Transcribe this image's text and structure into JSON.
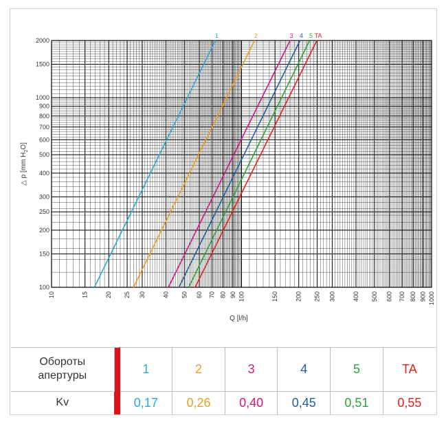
{
  "chart_data": {
    "type": "line",
    "xlabel": "Q [l/h]",
    "ylabel": "△ p [mm H",
    "ylabel_sub": "2",
    "ylabel_end": "O]",
    "xscale": "log",
    "yscale": "log",
    "xlim": [
      10,
      1000
    ],
    "ylim": [
      100,
      2000
    ],
    "grid": true,
    "x_ticks": [
      "10",
      "15",
      "20",
      "25",
      "30",
      "40",
      "50",
      "60",
      "70",
      "80",
      "90",
      "100",
      "150",
      "200",
      "250",
      "300",
      "400",
      "500",
      "600",
      "700",
      "800",
      "900",
      "1000"
    ],
    "y_ticks": [
      "100",
      "150",
      "200",
      "250",
      "300",
      "400",
      "500",
      "600",
      "700",
      "800",
      "900",
      "1000",
      "1500",
      "2000"
    ],
    "series": [
      {
        "name": "1",
        "color": "#29a8e0",
        "points": [
          [
            16.8,
            100
          ],
          [
            72.8,
            2000
          ]
        ]
      },
      {
        "name": "2",
        "color": "#f39a1e",
        "points": [
          [
            27.0,
            100
          ],
          [
            117,
            2000
          ]
        ]
      },
      {
        "name": "3",
        "color": "#d4147d",
        "points": [
          [
            41.2,
            100
          ],
          [
            180,
            2000
          ]
        ]
      },
      {
        "name": "4",
        "color": "#1f5ea8",
        "points": [
          [
            46.8,
            100
          ],
          [
            203,
            2000
          ]
        ]
      },
      {
        "name": "5",
        "color": "#2aa538",
        "points": [
          [
            52.7,
            100
          ],
          [
            228,
            2000
          ]
        ]
      },
      {
        "name": "TA",
        "color": "#e2231a",
        "points": [
          [
            57.0,
            100
          ],
          [
            249,
            2000
          ]
        ]
      }
    ]
  },
  "table": {
    "row1_header": [
      "Обороты",
      "апертуры"
    ],
    "row2_header": "Kv",
    "columns": [
      {
        "opening": "1",
        "kv": "0,17",
        "color": "#29a8e0"
      },
      {
        "opening": "2",
        "kv": "0,26",
        "color": "#f39a1e"
      },
      {
        "opening": "3",
        "kv": "0,40",
        "color": "#d4147d"
      },
      {
        "opening": "4",
        "kv": "0,45",
        "color": "#1f5ea8"
      },
      {
        "opening": "5",
        "kv": "0,51",
        "color": "#2aa538"
      },
      {
        "opening": "TA",
        "kv": "0,55",
        "color": "#e2231a"
      }
    ],
    "separator_color": "#d8151b"
  }
}
